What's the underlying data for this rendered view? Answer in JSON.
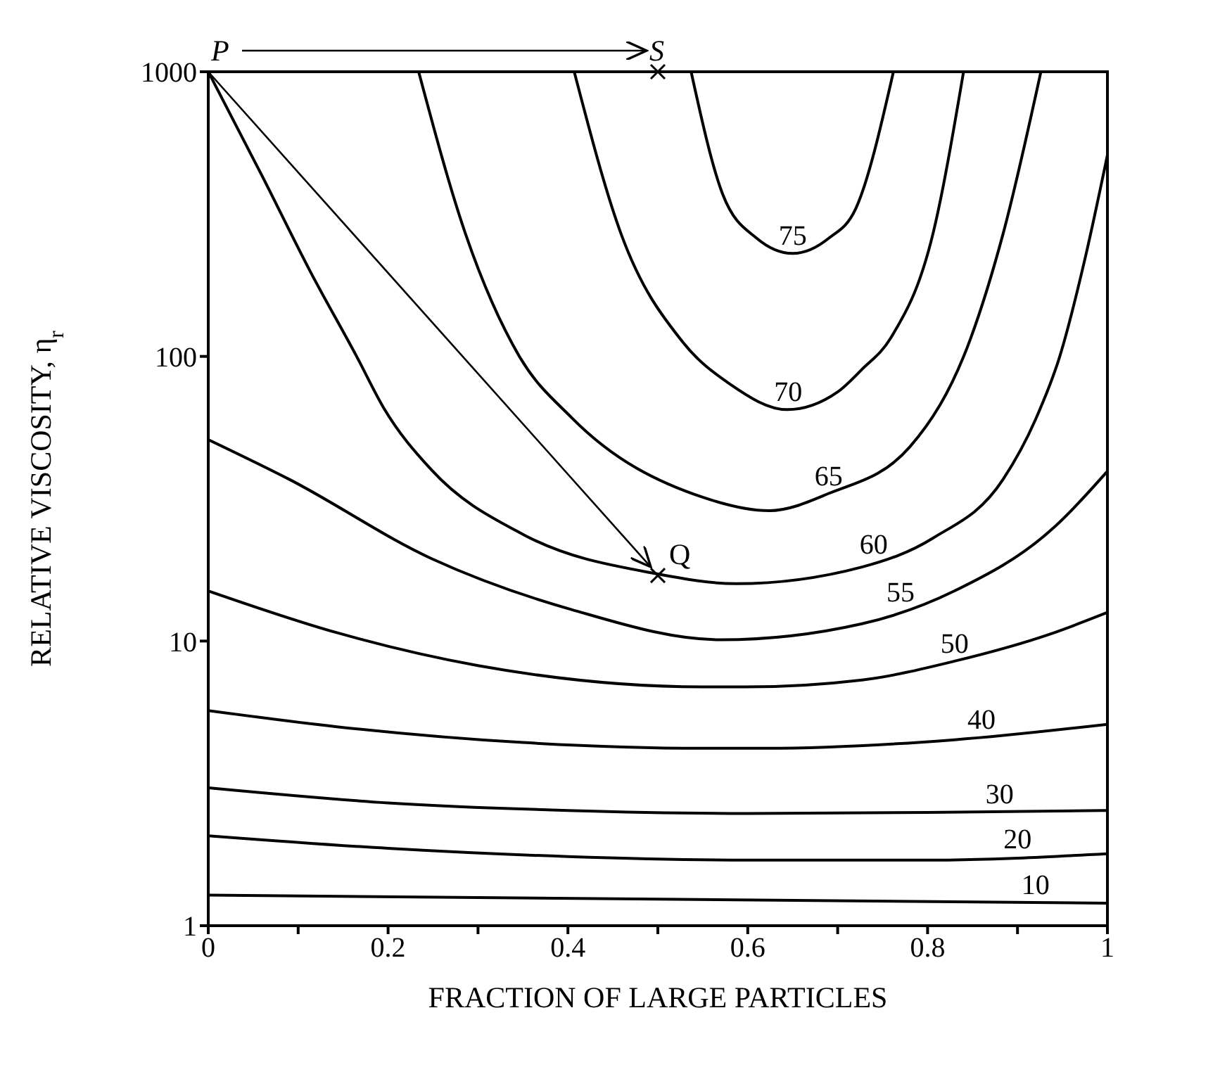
{
  "chart_data": {
    "type": "line",
    "xlabel": "FRACTION OF LARGE PARTICLES",
    "ylabel": "RELATIVE VISCOSITY, η$_{r}$",
    "xlim": [
      0,
      1
    ],
    "xticks": [
      0,
      {
        "value": 0.1,
        "label": null
      },
      0.2,
      {
        "value": 0.3,
        "label": null
      },
      0.4,
      {
        "value": 0.5,
        "label": null
      },
      0.6,
      {
        "value": 0.7,
        "label": null
      },
      0.8,
      {
        "value": 0.9,
        "label": null
      },
      1
    ],
    "ylim": [
      1,
      1000
    ],
    "yticks": [
      1,
      10,
      100,
      1000
    ],
    "log": "y",
    "grid": false,
    "series": [
      {
        "name": "75",
        "color": "#000000",
        "x": [
          0.537,
          0.572,
          0.61,
          0.65,
          0.69,
          0.72,
          0.762
        ],
        "values": [
          1000,
          372,
          260,
          230,
          260,
          330,
          1000
        ]
      },
      {
        "name": "70",
        "color": "#000000",
        "x": [
          0.407,
          0.459,
          0.528,
          0.58,
          0.644,
          0.7,
          0.727,
          0.759,
          0.806,
          0.84
        ],
        "values": [
          1000,
          270,
          112,
          80,
          65,
          75,
          90,
          116,
          270,
          1000
        ]
      },
      {
        "name": "65",
        "color": "#000000",
        "x": [
          0.234,
          0.286,
          0.346,
          0.404,
          0.55,
          0.624,
          0.69,
          0.78,
          0.848,
          0.884,
          0.926
        ],
        "values": [
          1000,
          270,
          100,
          61,
          32,
          28.7,
          33,
          48,
          116,
          270,
          1000
        ]
      },
      {
        "name": "60",
        "color": "#000000",
        "x": [
          0,
          0.06,
          0.113,
          0.165,
          0.195,
          0.248,
          0.35,
          0.5,
          0.587,
          0.727,
          0.806,
          0.884,
          0.92,
          0.947,
          0.975,
          1
        ],
        "values": [
          1000,
          430,
          200,
          100,
          66,
          40,
          23.7,
          17.2,
          15.9,
          18.2,
          23,
          37,
          60,
          100,
          220,
          510
        ]
      },
      {
        "name": "55",
        "color": "#000000",
        "x": [
          0,
          0.09,
          0.248,
          0.404,
          0.57,
          0.727,
          0.83,
          0.937,
          1
        ],
        "values": [
          51,
          37,
          19.5,
          12.9,
          10.1,
          11.5,
          15,
          24.5,
          39.5
        ]
      },
      {
        "name": "50",
        "color": "#000000",
        "x": [
          0,
          0.143,
          0.3,
          0.55,
          0.597,
          0.727,
          0.83,
          0.937,
          1
        ],
        "values": [
          15,
          10.7,
          8.2,
          6.9,
          6.9,
          7.3,
          8.5,
          10.6,
          12.6
        ]
      },
      {
        "name": "40",
        "color": "#000000",
        "x": [
          0,
          0.143,
          0.35,
          0.55,
          0.62,
          0.83,
          1
        ],
        "values": [
          5.7,
          5,
          4.4,
          4.2,
          4.2,
          4.5,
          5.1
        ]
      },
      {
        "name": "30",
        "color": "#000000",
        "x": [
          0,
          0.2,
          0.4,
          0.6,
          0.8,
          1
        ],
        "values": [
          3.05,
          2.7,
          2.54,
          2.48,
          2.5,
          2.54
        ]
      },
      {
        "name": "20",
        "color": "#000000",
        "x": [
          0,
          0.2,
          0.4,
          0.6,
          0.8,
          1
        ],
        "values": [
          2.07,
          1.87,
          1.75,
          1.7,
          1.7,
          1.79
        ]
      },
      {
        "name": "10",
        "color": "#000000",
        "x": [
          0,
          0.5,
          1
        ],
        "values": [
          1.28,
          1.24,
          1.2
        ]
      }
    ],
    "annotations": [
      {
        "text": "P",
        "x": 0,
        "y": 1000
      },
      "S",
      {
        "text": "Q",
        "x": 0.5,
        "y": 17
      }
    ]
  }
}
